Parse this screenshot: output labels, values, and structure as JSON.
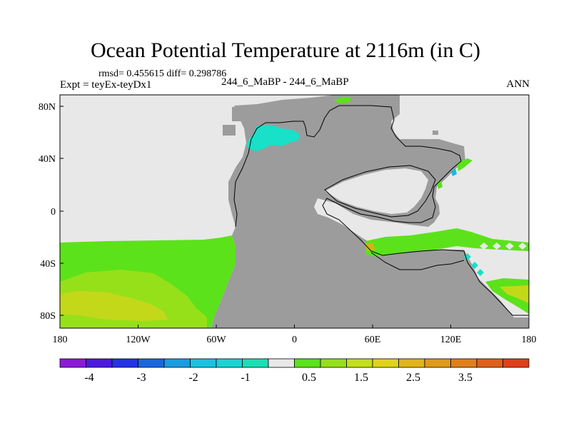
{
  "title": "Ocean Potential Temperature at 2116m (in C)",
  "stats": "rmsd= 0.455615 diff= 0.298786",
  "expt_label": "Expt = teyEx-teyDx1",
  "case_label": "244_6_MaBP - 244_6_MaBP",
  "season": "ANN",
  "x_ticks": [
    "180",
    "120W",
    "60W",
    "0",
    "60E",
    "120E",
    "180"
  ],
  "y_ticks": [
    "80N",
    "40N",
    "0",
    "40S",
    "80S"
  ],
  "colorbar": {
    "colors": [
      "#8c1ad9",
      "#4d1ae0",
      "#2433e6",
      "#1a66e0",
      "#1a9ce0",
      "#19c3e0",
      "#19d4d4",
      "#19e0b4",
      "#e8e8e8",
      "#5ce21a",
      "#96e01a",
      "#c4e01a",
      "#e0d41a",
      "#e0b41a",
      "#e09a1a",
      "#e0801a",
      "#e0601a",
      "#e0401a"
    ],
    "labels": [
      "-4",
      "-3",
      "-2",
      "-1",
      "0.5",
      "1.5",
      "2.5",
      "3.5"
    ]
  },
  "legend_colors": {
    "land": "#9c9c9c",
    "neutral": "#e8e8e8",
    "light_green": "#5ce21a",
    "yellow_green": "#96e01a",
    "yellow": "#c4d81a",
    "orange": "#d4b21a",
    "cyan": "#19e0c8",
    "light_blue": "#19b8e0"
  }
}
